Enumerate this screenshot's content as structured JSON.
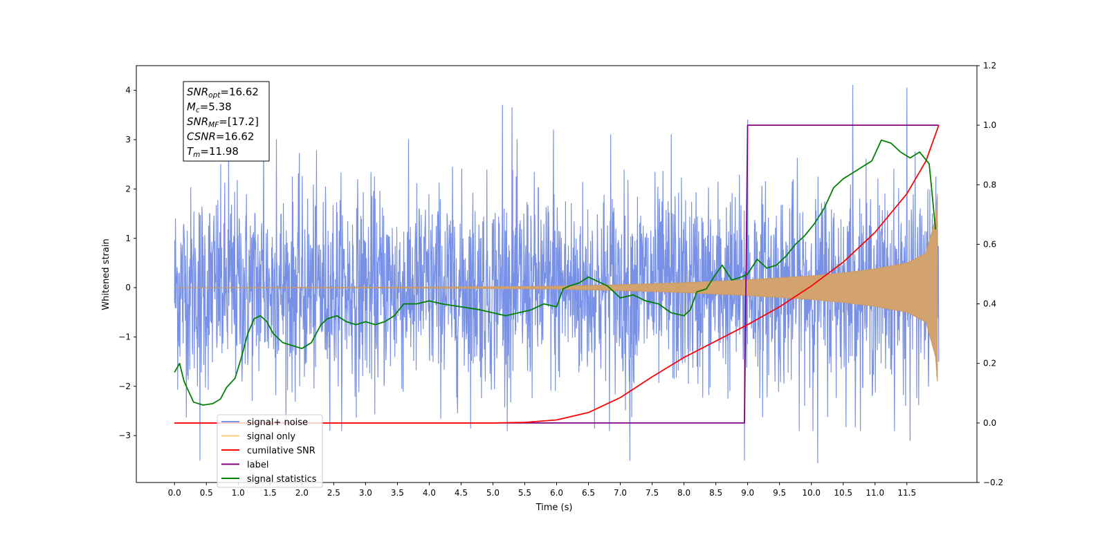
{
  "chart_data": {
    "type": "line",
    "xlabel": "Time (s)",
    "ylabel": "Whitened strain",
    "xlim": [
      -0.6,
      12.6
    ],
    "ylim_left": [
      -3.95,
      4.5
    ],
    "ylim_right": [
      -0.2,
      1.2
    ],
    "x_ticks": [
      0.0,
      0.5,
      1.0,
      1.5,
      2.0,
      2.5,
      3.0,
      3.5,
      4.0,
      4.5,
      5.0,
      5.5,
      6.0,
      6.5,
      7.0,
      7.5,
      8.0,
      8.5,
      9.0,
      9.5,
      10.0,
      10.5,
      11.0,
      11.5
    ],
    "x_tick_labels": [
      "0.0",
      "0.5",
      "1.0",
      "1.5",
      "2.0",
      "2.5",
      "3.0",
      "3.5",
      "4.0",
      "4.5",
      "5.0",
      "5.5",
      "6.0",
      "6.5",
      "7.0",
      "7.5",
      "8.0",
      "8.5",
      "9.0",
      "9.5",
      "10.0",
      "10.5",
      "11.0",
      "11.5"
    ],
    "y_left_ticks": [
      -3,
      -2,
      -1,
      0,
      1,
      2,
      3,
      4
    ],
    "y_left_tick_labels": [
      "−3",
      "−2",
      "−1",
      "0",
      "1",
      "2",
      "3",
      "4"
    ],
    "y_right_ticks": [
      -0.2,
      0.0,
      0.2,
      0.4,
      0.6,
      0.8,
      1.0,
      1.2
    ],
    "y_right_tick_labels": [
      "−0.2",
      "0.0",
      "0.2",
      "0.4",
      "0.6",
      "0.8",
      "1.0",
      "1.2"
    ],
    "legend_position": "lower-left",
    "annotation": {
      "lines": [
        {
          "label": "SNR",
          "sub": "opt",
          "value": "=16.62"
        },
        {
          "label": "M",
          "sub": "c",
          "value": "=5.38"
        },
        {
          "label": "SNR",
          "sub": "MF",
          "value": "=[17.2]"
        },
        {
          "label": "CSNR",
          "sub": "",
          "value": "=16.62"
        },
        {
          "label": "T",
          "sub": "m",
          "value": "=11.98"
        }
      ]
    },
    "series": [
      {
        "name": "signal+ noise",
        "axis": "left",
        "color": "#7891e6",
        "style": "dense noise trace, approx. std 1.0, range about -3.5 to 4.1",
        "x_range": [
          0.0,
          12.0
        ],
        "notable_peaks": [
          [
            0.85,
            2.8
          ],
          [
            1.4,
            3.2
          ],
          [
            1.6,
            3.0
          ],
          [
            5.15,
            3.7
          ],
          [
            5.3,
            3.65
          ],
          [
            5.95,
            3.2
          ],
          [
            6.85,
            3.1
          ],
          [
            7.8,
            3.1
          ],
          [
            9.0,
            3.4
          ],
          [
            10.65,
            4.1
          ],
          [
            11.5,
            4.05
          ]
        ],
        "notable_troughs": [
          [
            0.4,
            -3.5
          ],
          [
            7.15,
            -3.5
          ],
          [
            8.95,
            -3.5
          ],
          [
            10.1,
            -3.55
          ],
          [
            11.55,
            -3.1
          ]
        ]
      },
      {
        "name": "signal only",
        "axis": "left",
        "color": "#d2a36e",
        "style": "chirp oscillation, envelope amplitude grows with time",
        "x": [
          0.0,
          4.0,
          6.0,
          7.0,
          8.0,
          9.0,
          10.0,
          10.5,
          11.0,
          11.5,
          11.8,
          11.95,
          11.98
        ],
        "envelope": [
          0.0,
          0.01,
          0.03,
          0.06,
          0.1,
          0.16,
          0.24,
          0.3,
          0.38,
          0.5,
          0.7,
          1.4,
          1.9
        ]
      },
      {
        "name": "cumilative SNR",
        "axis": "right",
        "color": "#ff0000",
        "x": [
          0.0,
          5.0,
          5.5,
          6.0,
          6.5,
          7.0,
          7.5,
          8.0,
          8.5,
          9.0,
          9.5,
          10.0,
          10.5,
          11.0,
          11.5,
          11.8,
          12.0
        ],
        "y": [
          0.0,
          0.0,
          0.002,
          0.01,
          0.035,
          0.085,
          0.155,
          0.22,
          0.275,
          0.33,
          0.39,
          0.46,
          0.54,
          0.64,
          0.77,
          0.88,
          1.0
        ]
      },
      {
        "name": "label",
        "axis": "right",
        "color": "#800080",
        "x": [
          0.0,
          8.95,
          9.0,
          12.0
        ],
        "y": [
          0.0,
          0.0,
          1.0,
          1.0
        ]
      },
      {
        "name": "signal statistics",
        "axis": "right",
        "color": "#008000",
        "x": [
          0.0,
          0.08,
          0.15,
          0.3,
          0.45,
          0.6,
          0.72,
          0.82,
          0.95,
          1.05,
          1.15,
          1.25,
          1.35,
          1.45,
          1.55,
          1.7,
          1.85,
          2.0,
          2.15,
          2.3,
          2.4,
          2.55,
          2.7,
          2.85,
          3.0,
          3.15,
          3.3,
          3.45,
          3.6,
          3.8,
          4.0,
          4.2,
          4.5,
          4.8,
          5.0,
          5.2,
          5.4,
          5.6,
          5.8,
          6.0,
          6.1,
          6.2,
          6.35,
          6.5,
          6.6,
          6.8,
          7.0,
          7.2,
          7.4,
          7.6,
          7.8,
          8.0,
          8.1,
          8.2,
          8.35,
          8.5,
          8.6,
          8.75,
          8.9,
          9.0,
          9.15,
          9.3,
          9.45,
          9.6,
          9.75,
          9.9,
          10.05,
          10.2,
          10.35,
          10.5,
          10.65,
          10.8,
          10.95,
          11.1,
          11.25,
          11.4,
          11.55,
          11.7,
          11.85,
          11.95
        ],
        "y": [
          0.17,
          0.2,
          0.14,
          0.07,
          0.06,
          0.065,
          0.08,
          0.12,
          0.15,
          0.22,
          0.3,
          0.35,
          0.36,
          0.34,
          0.3,
          0.27,
          0.26,
          0.25,
          0.27,
          0.33,
          0.35,
          0.36,
          0.34,
          0.33,
          0.34,
          0.33,
          0.34,
          0.36,
          0.4,
          0.4,
          0.41,
          0.4,
          0.39,
          0.38,
          0.37,
          0.36,
          0.37,
          0.38,
          0.4,
          0.39,
          0.45,
          0.46,
          0.47,
          0.49,
          0.48,
          0.46,
          0.42,
          0.43,
          0.41,
          0.4,
          0.37,
          0.36,
          0.38,
          0.44,
          0.45,
          0.5,
          0.53,
          0.48,
          0.49,
          0.5,
          0.55,
          0.52,
          0.53,
          0.56,
          0.6,
          0.63,
          0.67,
          0.72,
          0.79,
          0.82,
          0.84,
          0.86,
          0.88,
          0.95,
          0.94,
          0.91,
          0.89,
          0.91,
          0.87,
          0.65
        ]
      }
    ]
  }
}
